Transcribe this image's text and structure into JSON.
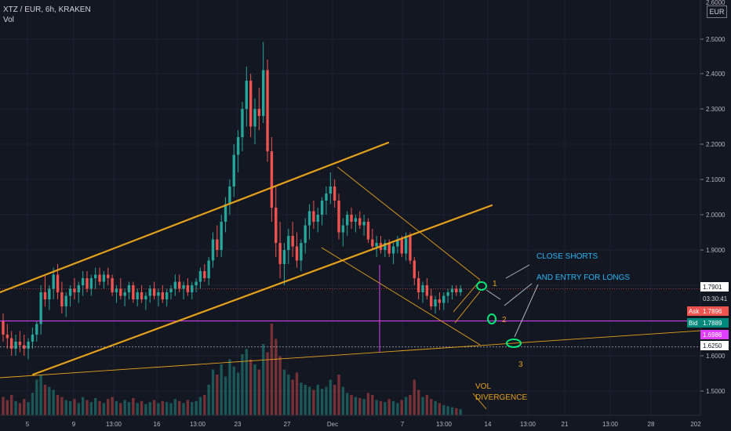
{
  "legend": {
    "symbol": "XTZ / EUR, 6h, KRAKEN",
    "volume": "Vol"
  },
  "axis": {
    "currency": "EUR"
  },
  "colors": {
    "bg": "#131722",
    "up": "#26a69a",
    "down": "#ef5350",
    "channel": "#e6a11b",
    "magenta": "#e040fb",
    "cyan": "#29b6f6",
    "grid": "#1e222d"
  },
  "chart_data": {
    "type": "candlestick",
    "y_ticks": [
      "2.5000",
      "2.4000",
      "2.3000",
      "2.2000",
      "2.1000",
      "2.0000",
      "1.9000",
      "1.6000",
      "1.5000"
    ],
    "y_top_partial": "2.6000",
    "x_ticks": [
      "5",
      "9",
      "13:00",
      "16",
      "13:00",
      "23",
      "27",
      "Dec",
      "7",
      "13:00",
      "14",
      "13:00",
      "21",
      "13:00",
      "28",
      "202"
    ],
    "price_tags": {
      "last": "1.7901",
      "countdown": "03:30:41",
      "ask": {
        "label": "Ask",
        "value": "1.7896"
      },
      "bid": {
        "label": "Bid",
        "value": "1.7889"
      },
      "magenta": "1.6986",
      "support": "1.6250"
    },
    "annotations": {
      "close_shorts": "CLOSE SHORTS",
      "entry_longs": "AND ENTRY FOR LONGS",
      "n1": "1",
      "n2": "2",
      "n3": "3",
      "vol_div_1": "VOL",
      "vol_div_2": "DIVERGENCE"
    },
    "candles": [
      [
        1.7,
        1.72,
        1.64,
        1.66
      ],
      [
        1.66,
        1.69,
        1.62,
        1.65
      ],
      [
        1.65,
        1.67,
        1.6,
        1.62
      ],
      [
        1.62,
        1.66,
        1.6,
        1.64
      ],
      [
        1.64,
        1.67,
        1.61,
        1.63
      ],
      [
        1.63,
        1.66,
        1.6,
        1.62
      ],
      [
        1.62,
        1.65,
        1.59,
        1.64
      ],
      [
        1.64,
        1.68,
        1.62,
        1.66
      ],
      [
        1.66,
        1.7,
        1.64,
        1.69
      ],
      [
        1.69,
        1.8,
        1.66,
        1.78
      ],
      [
        1.78,
        1.83,
        1.74,
        1.76
      ],
      [
        1.76,
        1.8,
        1.73,
        1.79
      ],
      [
        1.79,
        1.85,
        1.76,
        1.83
      ],
      [
        1.83,
        1.86,
        1.76,
        1.78
      ],
      [
        1.78,
        1.81,
        1.72,
        1.74
      ],
      [
        1.74,
        1.78,
        1.71,
        1.77
      ],
      [
        1.77,
        1.8,
        1.74,
        1.79
      ],
      [
        1.79,
        1.82,
        1.76,
        1.78
      ],
      [
        1.78,
        1.81,
        1.75,
        1.8
      ],
      [
        1.8,
        1.84,
        1.77,
        1.82
      ],
      [
        1.82,
        1.84,
        1.78,
        1.79
      ],
      [
        1.79,
        1.83,
        1.77,
        1.82
      ],
      [
        1.82,
        1.85,
        1.79,
        1.83
      ],
      [
        1.83,
        1.85,
        1.8,
        1.81
      ],
      [
        1.81,
        1.84,
        1.79,
        1.83
      ],
      [
        1.83,
        1.85,
        1.8,
        1.82
      ],
      [
        1.82,
        1.83,
        1.77,
        1.78
      ],
      [
        1.78,
        1.8,
        1.75,
        1.79
      ],
      [
        1.79,
        1.82,
        1.76,
        1.77
      ],
      [
        1.77,
        1.79,
        1.74,
        1.78
      ],
      [
        1.78,
        1.81,
        1.76,
        1.8
      ],
      [
        1.8,
        1.81,
        1.75,
        1.76
      ],
      [
        1.76,
        1.79,
        1.74,
        1.78
      ],
      [
        1.78,
        1.8,
        1.75,
        1.76
      ],
      [
        1.76,
        1.78,
        1.73,
        1.77
      ],
      [
        1.77,
        1.8,
        1.75,
        1.79
      ],
      [
        1.79,
        1.81,
        1.76,
        1.77
      ],
      [
        1.77,
        1.79,
        1.74,
        1.78
      ],
      [
        1.78,
        1.8,
        1.75,
        1.76
      ],
      [
        1.76,
        1.79,
        1.74,
        1.78
      ],
      [
        1.78,
        1.8,
        1.76,
        1.79
      ],
      [
        1.79,
        1.83,
        1.77,
        1.81
      ],
      [
        1.81,
        1.83,
        1.78,
        1.79
      ],
      [
        1.79,
        1.81,
        1.76,
        1.8
      ],
      [
        1.8,
        1.82,
        1.77,
        1.78
      ],
      [
        1.78,
        1.81,
        1.76,
        1.8
      ],
      [
        1.8,
        1.82,
        1.78,
        1.81
      ],
      [
        1.81,
        1.85,
        1.79,
        1.84
      ],
      [
        1.84,
        1.86,
        1.81,
        1.82
      ],
      [
        1.82,
        1.88,
        1.8,
        1.87
      ],
      [
        1.87,
        1.95,
        1.85,
        1.93
      ],
      [
        1.93,
        1.97,
        1.88,
        1.9
      ],
      [
        1.9,
        2.0,
        1.88,
        1.98
      ],
      [
        1.98,
        2.05,
        1.95,
        2.03
      ],
      [
        2.03,
        2.1,
        2.0,
        2.08
      ],
      [
        2.08,
        2.2,
        2.05,
        2.17
      ],
      [
        2.17,
        2.24,
        2.12,
        2.22
      ],
      [
        2.22,
        2.32,
        2.18,
        2.3
      ],
      [
        2.3,
        2.42,
        2.25,
        2.38
      ],
      [
        2.38,
        2.4,
        2.22,
        2.25
      ],
      [
        2.25,
        2.33,
        2.2,
        2.3
      ],
      [
        2.3,
        2.36,
        2.24,
        2.28
      ],
      [
        2.28,
        2.49,
        2.26,
        2.41
      ],
      [
        2.41,
        2.44,
        2.15,
        2.18
      ],
      [
        2.18,
        2.22,
        1.98,
        2.02
      ],
      [
        2.02,
        2.08,
        1.88,
        1.92
      ],
      [
        1.92,
        1.98,
        1.82,
        1.86
      ],
      [
        1.86,
        1.92,
        1.8,
        1.9
      ],
      [
        1.9,
        1.96,
        1.86,
        1.94
      ],
      [
        1.94,
        1.98,
        1.88,
        1.91
      ],
      [
        1.91,
        1.95,
        1.85,
        1.87
      ],
      [
        1.87,
        1.93,
        1.84,
        1.92
      ],
      [
        1.92,
        1.99,
        1.89,
        1.97
      ],
      [
        1.97,
        2.03,
        1.93,
        2.01
      ],
      [
        2.01,
        2.04,
        1.96,
        1.98
      ],
      [
        1.98,
        2.02,
        1.95,
        2.0
      ],
      [
        2.0,
        2.05,
        1.97,
        2.04
      ],
      [
        2.04,
        2.08,
        2.0,
        2.06
      ],
      [
        2.06,
        2.12,
        2.03,
        2.08
      ],
      [
        2.08,
        2.1,
        2.02,
        2.04
      ],
      [
        2.04,
        2.06,
        1.93,
        1.95
      ],
      [
        1.95,
        1.99,
        1.91,
        1.97
      ],
      [
        1.97,
        2.01,
        1.94,
        2.0
      ],
      [
        2.0,
        2.02,
        1.96,
        1.98
      ],
      [
        1.98,
        2.0,
        1.95,
        1.99
      ],
      [
        1.99,
        2.01,
        1.96,
        1.97
      ],
      [
        1.97,
        2.0,
        1.94,
        1.98
      ],
      [
        1.98,
        1.99,
        1.92,
        1.93
      ],
      [
        1.93,
        1.96,
        1.9,
        1.91
      ],
      [
        1.91,
        1.94,
        1.88,
        1.92
      ],
      [
        1.92,
        1.94,
        1.89,
        1.9
      ],
      [
        1.9,
        1.93,
        1.88,
        1.92
      ],
      [
        1.92,
        1.93,
        1.88,
        1.89
      ],
      [
        1.89,
        1.92,
        1.86,
        1.91
      ],
      [
        1.91,
        1.94,
        1.89,
        1.93
      ],
      [
        1.93,
        1.94,
        1.88,
        1.89
      ],
      [
        1.89,
        1.95,
        1.87,
        1.94
      ],
      [
        1.94,
        1.95,
        1.86,
        1.87
      ],
      [
        1.87,
        1.88,
        1.8,
        1.82
      ],
      [
        1.82,
        1.84,
        1.76,
        1.78
      ],
      [
        1.78,
        1.81,
        1.75,
        1.8
      ],
      [
        1.8,
        1.82,
        1.76,
        1.77
      ],
      [
        1.77,
        1.79,
        1.73,
        1.74
      ],
      [
        1.74,
        1.77,
        1.72,
        1.76
      ],
      [
        1.76,
        1.78,
        1.73,
        1.75
      ],
      [
        1.75,
        1.78,
        1.73,
        1.77
      ],
      [
        1.77,
        1.79,
        1.75,
        1.78
      ],
      [
        1.78,
        1.8,
        1.76,
        1.79
      ],
      [
        1.79,
        1.8,
        1.77,
        1.78
      ],
      [
        1.78,
        1.8,
        1.77,
        1.79
      ]
    ],
    "volume": [
      0.18,
      0.15,
      0.2,
      0.14,
      0.12,
      0.16,
      0.13,
      0.22,
      0.35,
      0.4,
      0.3,
      0.28,
      0.25,
      0.2,
      0.18,
      0.15,
      0.14,
      0.16,
      0.12,
      0.18,
      0.15,
      0.13,
      0.17,
      0.14,
      0.12,
      0.16,
      0.18,
      0.14,
      0.12,
      0.15,
      0.13,
      0.17,
      0.12,
      0.14,
      0.11,
      0.13,
      0.15,
      0.12,
      0.14,
      0.13,
      0.12,
      0.16,
      0.14,
      0.12,
      0.15,
      0.13,
      0.14,
      0.18,
      0.2,
      0.3,
      0.45,
      0.4,
      0.5,
      0.38,
      0.55,
      0.48,
      0.42,
      0.6,
      0.65,
      0.55,
      0.5,
      0.45,
      0.7,
      0.62,
      0.9,
      0.75,
      0.58,
      0.45,
      0.4,
      0.35,
      0.42,
      0.32,
      0.3,
      0.28,
      0.25,
      0.3,
      0.26,
      0.28,
      0.35,
      0.3,
      0.4,
      0.28,
      0.22,
      0.2,
      0.18,
      0.17,
      0.16,
      0.22,
      0.2,
      0.15,
      0.14,
      0.13,
      0.16,
      0.14,
      0.12,
      0.15,
      0.18,
      0.2,
      0.35,
      0.25,
      0.18,
      0.2,
      0.16,
      0.14,
      0.12,
      0.1,
      0.09,
      0.08,
      0.07,
      0.06
    ]
  }
}
